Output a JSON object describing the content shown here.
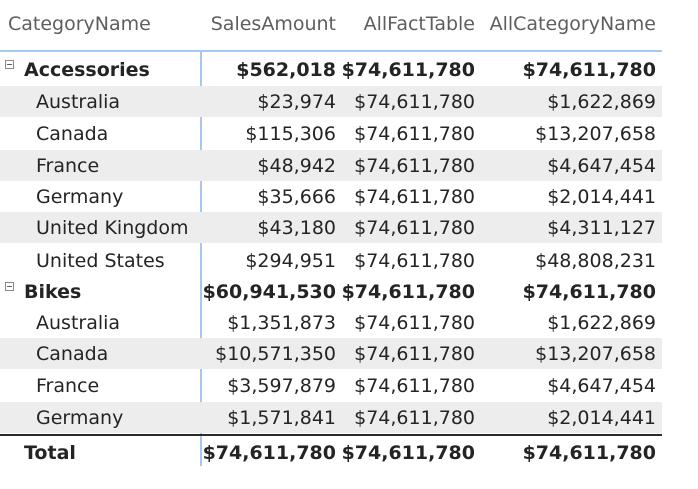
{
  "columns": {
    "category": "CategoryName",
    "sales": "SalesAmount",
    "all_fact": "AllFactTable",
    "all_category": "AllCategoryName"
  },
  "rows": [
    {
      "label": "Accessories",
      "sales": "$562,018",
      "all_fact": "$74,611,780",
      "all_category": "$74,611,780"
    },
    {
      "label": "Australia",
      "sales": "$23,974",
      "all_fact": "$74,611,780",
      "all_category": "$1,622,869"
    },
    {
      "label": "Canada",
      "sales": "$115,306",
      "all_fact": "$74,611,780",
      "all_category": "$13,207,658"
    },
    {
      "label": "France",
      "sales": "$48,942",
      "all_fact": "$74,611,780",
      "all_category": "$4,647,454"
    },
    {
      "label": "Germany",
      "sales": "$35,666",
      "all_fact": "$74,611,780",
      "all_category": "$2,014,441"
    },
    {
      "label": "United Kingdom",
      "sales": "$43,180",
      "all_fact": "$74,611,780",
      "all_category": "$4,311,127"
    },
    {
      "label": "United States",
      "sales": "$294,951",
      "all_fact": "$74,611,780",
      "all_category": "$48,808,231"
    },
    {
      "label": "Bikes",
      "sales": "$60,941,530",
      "all_fact": "$74,611,780",
      "all_category": "$74,611,780"
    },
    {
      "label": "Australia",
      "sales": "$1,351,873",
      "all_fact": "$74,611,780",
      "all_category": "$1,622,869"
    },
    {
      "label": "Canada",
      "sales": "$10,571,350",
      "all_fact": "$74,611,780",
      "all_category": "$13,207,658"
    },
    {
      "label": "France",
      "sales": "$3,597,879",
      "all_fact": "$74,611,780",
      "all_category": "$4,647,454"
    },
    {
      "label": "Germany",
      "sales": "$1,571,841",
      "all_fact": "$74,611,780",
      "all_category": "$2,014,441"
    },
    {
      "label": "Total",
      "sales": "$74,611,780",
      "all_fact": "$74,611,780",
      "all_category": "$74,611,780"
    }
  ],
  "icons": {
    "collapse": "minus-box-icon"
  },
  "colors": {
    "accent_line": "#a6c8ef",
    "alt_row": "#eeedee",
    "text": "#252423"
  }
}
